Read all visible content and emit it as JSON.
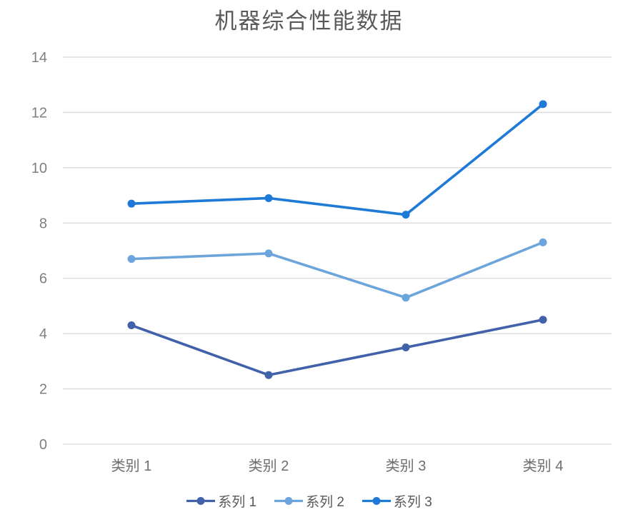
{
  "chart_data": {
    "type": "line",
    "title": "机器综合性能数据",
    "categories": [
      "类别 1",
      "类别 2",
      "类别 3",
      "类别 4"
    ],
    "series": [
      {
        "name": "系列 1",
        "color": "#4161A9",
        "values": [
          4.3,
          2.5,
          3.5,
          4.5
        ]
      },
      {
        "name": "系列 2",
        "color": "#6BA5DB",
        "values": [
          6.7,
          6.9,
          5.3,
          7.3
        ]
      },
      {
        "name": "系列 3",
        "color": "#1E7AD6",
        "values": [
          8.7,
          8.9,
          8.3,
          12.3
        ]
      }
    ],
    "xlabel": "",
    "ylabel": "",
    "ylim": [
      0,
      14
    ],
    "ytick_step": 2,
    "yticks": [
      0,
      2,
      4,
      6,
      8,
      10,
      12,
      14
    ],
    "grid": "horizontal-only",
    "gridline_color": "#D9D9D9",
    "legend_position": "bottom",
    "background_color": "#FFFFFF",
    "title_color": "#595959",
    "tick_label_color": "#7F7F7F",
    "category_label_color": "#6E6E6E",
    "legend_text_color": "#595959"
  }
}
